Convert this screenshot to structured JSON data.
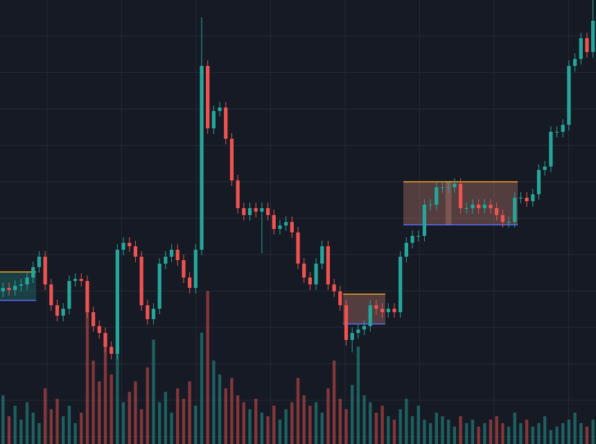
{
  "chart_data": {
    "type": "candlestick",
    "ylim": [
      0,
      640
    ],
    "grid": true,
    "up_color": "#26a69a",
    "down_color": "#ef5350",
    "open": [
      220,
      225,
      222,
      228,
      230,
      240,
      255,
      270,
      230,
      200,
      185,
      195,
      235,
      238,
      235,
      190,
      170,
      160,
      140,
      130,
      280,
      290,
      285,
      270,
      200,
      180,
      195,
      260,
      270,
      280,
      265,
      240,
      225,
      280,
      545,
      455,
      480,
      485,
      440,
      380,
      340,
      330,
      340,
      335,
      340,
      330,
      310,
      315,
      320,
      305,
      260,
      240,
      230,
      260,
      285,
      230,
      220,
      200,
      150,
      160,
      165,
      170,
      200,
      195,
      190,
      195,
      190,
      270,
      290,
      300,
      300,
      345,
      345,
      370,
      370,
      370,
      375,
      340,
      340,
      345,
      340,
      345,
      340,
      330,
      320,
      320,
      355,
      355,
      350,
      360,
      395,
      400,
      450,
      450,
      460,
      545,
      555,
      585,
      565
    ],
    "high": [
      233,
      233,
      236,
      238,
      248,
      263,
      278,
      278,
      238,
      208,
      203,
      243,
      246,
      246,
      243,
      198,
      178,
      168,
      148,
      288,
      298,
      298,
      293,
      278,
      208,
      203,
      268,
      278,
      288,
      288,
      273,
      248,
      288,
      615,
      553,
      488,
      493,
      493,
      448,
      388,
      348,
      348,
      348,
      348,
      348,
      338,
      323,
      328,
      328,
      313,
      268,
      248,
      268,
      293,
      293,
      238,
      228,
      208,
      168,
      173,
      178,
      208,
      208,
      203,
      203,
      203,
      278,
      298,
      308,
      308,
      353,
      353,
      378,
      378,
      378,
      383,
      383,
      348,
      353,
      353,
      353,
      353,
      348,
      338,
      328,
      363,
      363,
      363,
      368,
      403,
      408,
      458,
      458,
      468,
      553,
      563,
      593,
      593,
      640
    ],
    "low": [
      212,
      214,
      214,
      220,
      222,
      232,
      247,
      222,
      192,
      177,
      177,
      187,
      227,
      227,
      182,
      162,
      152,
      132,
      122,
      122,
      272,
      277,
      262,
      192,
      172,
      172,
      187,
      252,
      262,
      257,
      232,
      217,
      217,
      272,
      447,
      447,
      472,
      432,
      372,
      332,
      322,
      322,
      327,
      275,
      322,
      302,
      302,
      307,
      297,
      252,
      232,
      222,
      222,
      252,
      222,
      212,
      192,
      142,
      132,
      152,
      157,
      162,
      187,
      182,
      182,
      182,
      182,
      262,
      282,
      292,
      292,
      337,
      337,
      362,
      362,
      362,
      332,
      332,
      332,
      332,
      332,
      332,
      322,
      312,
      312,
      312,
      347,
      342,
      342,
      352,
      387,
      392,
      442,
      442,
      452,
      537,
      547,
      557,
      557
    ],
    "close": [
      225,
      222,
      228,
      230,
      240,
      255,
      270,
      230,
      200,
      185,
      195,
      235,
      238,
      235,
      190,
      170,
      160,
      140,
      130,
      280,
      290,
      285,
      270,
      200,
      180,
      195,
      260,
      270,
      280,
      265,
      240,
      225,
      280,
      545,
      455,
      480,
      485,
      440,
      380,
      340,
      330,
      340,
      335,
      340,
      330,
      310,
      315,
      320,
      305,
      260,
      240,
      230,
      260,
      285,
      230,
      220,
      200,
      150,
      160,
      165,
      170,
      200,
      195,
      190,
      195,
      190,
      270,
      290,
      300,
      300,
      345,
      345,
      370,
      370,
      370,
      375,
      340,
      340,
      345,
      340,
      345,
      340,
      330,
      320,
      320,
      355,
      355,
      350,
      360,
      395,
      400,
      450,
      450,
      460,
      545,
      555,
      585,
      565,
      610
    ],
    "volume": [
      70,
      40,
      55,
      35,
      60,
      45,
      30,
      80,
      50,
      65,
      40,
      55,
      30,
      45,
      190,
      120,
      90,
      140,
      100,
      170,
      60,
      75,
      90,
      50,
      110,
      150,
      60,
      75,
      45,
      80,
      65,
      90,
      55,
      160,
      220,
      120,
      100,
      80,
      95,
      70,
      60,
      50,
      65,
      45,
      40,
      55,
      35,
      50,
      60,
      95,
      70,
      55,
      60,
      45,
      80,
      120,
      65,
      50,
      85,
      140,
      70,
      60,
      45,
      55,
      40,
      35,
      50,
      65,
      40,
      55,
      35,
      30,
      45,
      40,
      35,
      25,
      40,
      30,
      35,
      25,
      30,
      35,
      40,
      30,
      25,
      45,
      30,
      35,
      25,
      30,
      40,
      20,
      25,
      30,
      35,
      45,
      30,
      25,
      35
    ],
    "vlim": [
      0,
      300
    ],
    "zones": [
      {
        "start": 0,
        "end": 5,
        "top": 248,
        "bottom": 207,
        "fill": "rgba(38,166,154,0.28)",
        "top_color": "#f5a623",
        "bottom_color": "#5b6cff"
      },
      {
        "start": 57,
        "end": 63,
        "top": 216,
        "bottom": 173,
        "fill": "rgba(200,130,110,0.35)",
        "top_color": "#f5a623",
        "bottom_color": "#5b6cff"
      },
      {
        "start": 67,
        "end": 74,
        "top": 378,
        "bottom": 316,
        "fill": "rgba(200,130,110,0.35)",
        "top_color": "#f5a623",
        "bottom_color": "#5b6cff"
      },
      {
        "start": 74,
        "end": 85,
        "top": 378,
        "bottom": 316,
        "fill": "rgba(200,130,110,0.35)",
        "top_color": "#f5a623",
        "bottom_color": "#5b6cff"
      }
    ]
  }
}
